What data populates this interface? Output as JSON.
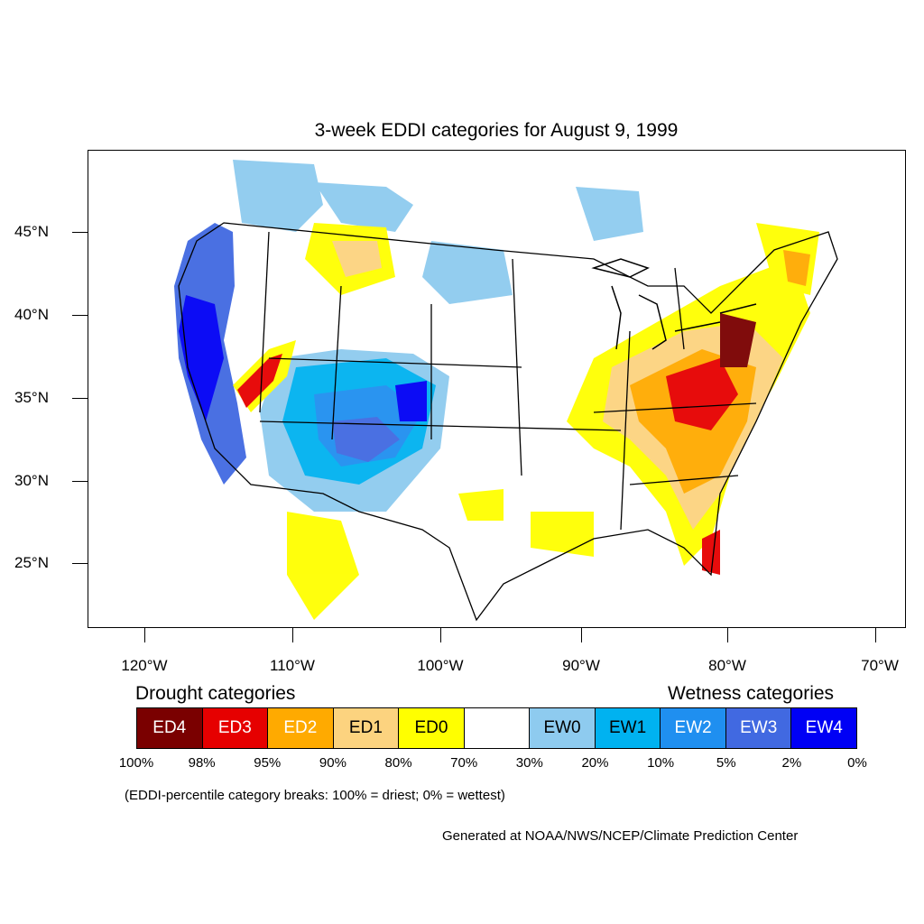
{
  "title": "3-week EDDI categories for August 9, 1999",
  "lat_labels": [
    "45°N",
    "40°N",
    "35°N",
    "30°N",
    "25°N"
  ],
  "lon_labels": [
    "120°W",
    "110°W",
    "100°W",
    "90°W",
    "80°W",
    "70°W"
  ],
  "legend": {
    "drought_heading": "Drought categories",
    "wetness_heading": "Wetness categories",
    "categories": [
      {
        "label": "ED4",
        "color": "#7a0000",
        "text_color": "#ffffff"
      },
      {
        "label": "ED3",
        "color": "#e60000",
        "text_color": "#ffffff"
      },
      {
        "label": "ED2",
        "color": "#ffaa00",
        "text_color": "#ffffff"
      },
      {
        "label": "ED1",
        "color": "#fcd37f",
        "text_color": "#000000"
      },
      {
        "label": "ED0",
        "color": "#ffff00",
        "text_color": "#000000"
      },
      {
        "label": "",
        "color": "#ffffff",
        "text_color": "#000000"
      },
      {
        "label": "EW0",
        "color": "#8ecbef",
        "text_color": "#000000"
      },
      {
        "label": "EW1",
        "color": "#00b2f0",
        "text_color": "#000000"
      },
      {
        "label": "EW2",
        "color": "#1f8ff0",
        "text_color": "#ffffff"
      },
      {
        "label": "EW3",
        "color": "#4169e1",
        "text_color": "#ffffff"
      },
      {
        "label": "EW4",
        "color": "#0000f5",
        "text_color": "#ffffff"
      }
    ],
    "breaks": [
      "100%",
      "98%",
      "95%",
      "90%",
      "80%",
      "70%",
      "30%",
      "20%",
      "10%",
      "5%",
      "2%",
      "0%"
    ]
  },
  "note": "(EDDI-percentile category breaks: 100% = driest; 0% = wettest)",
  "credit": "Generated at NOAA/NWS/NCEP/Climate Prediction Center"
}
